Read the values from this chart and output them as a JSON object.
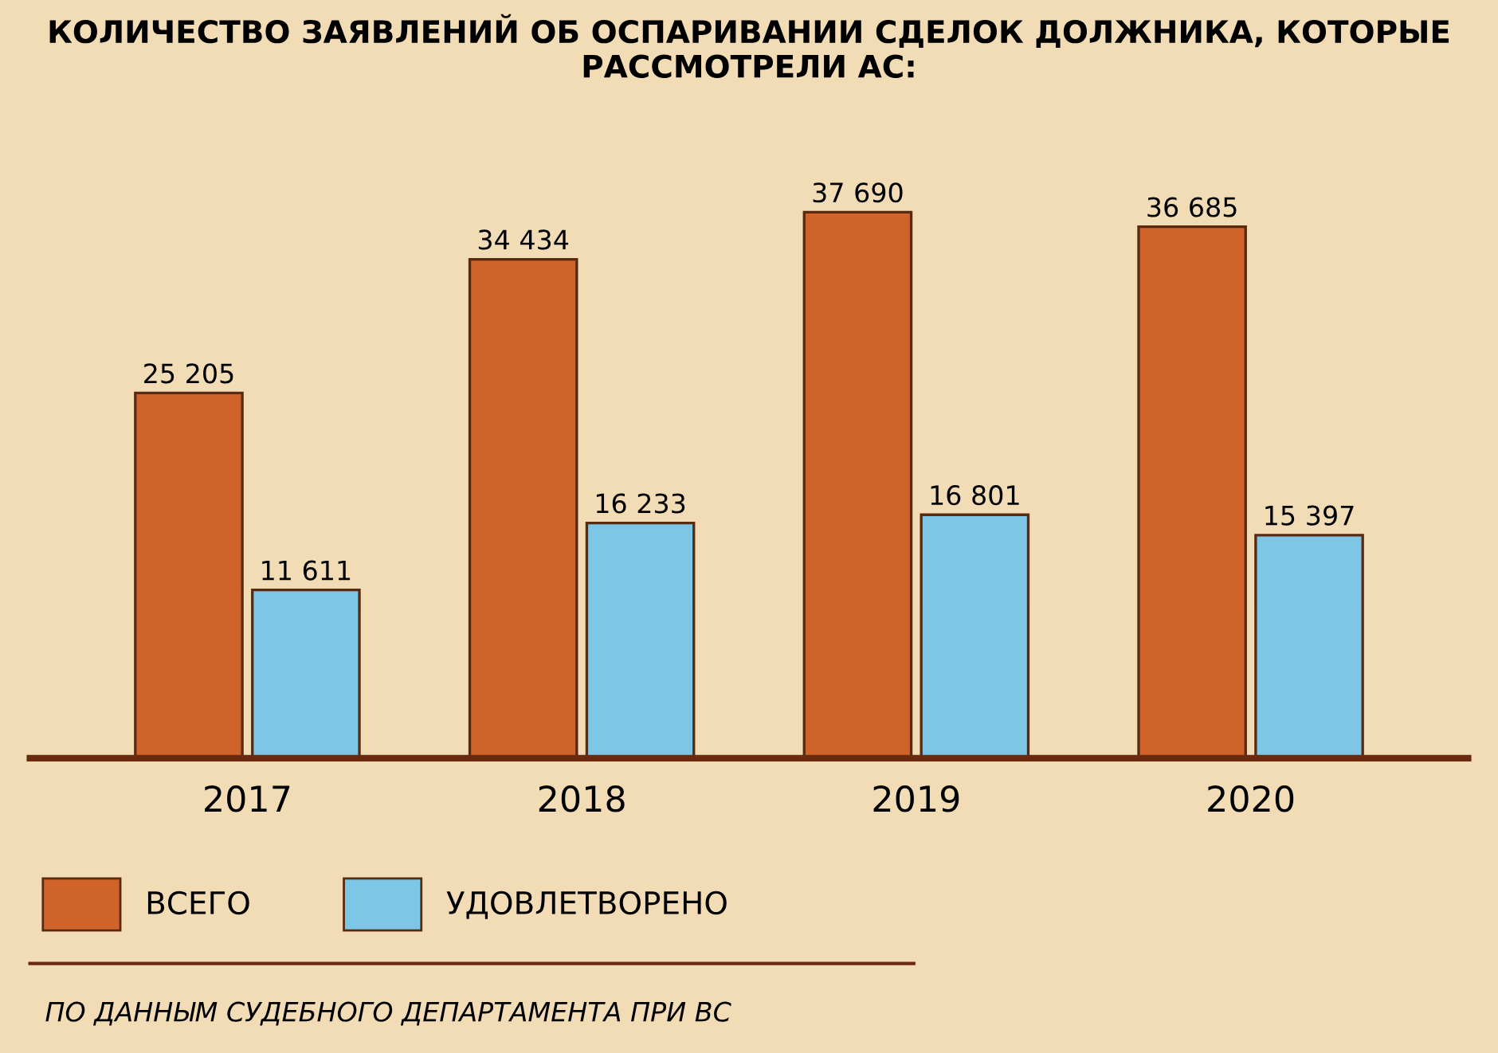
{
  "chart_data": {
    "type": "bar",
    "title": "КОЛИЧЕСТВО ЗАЯВЛЕНИЙ ОБ ОСПАРИВАНИИ СДЕЛОК ДОЛЖНИКА, КОТОРЫЕ РАССМОТРЕЛИ АС:",
    "categories": [
      "2017",
      "2018",
      "2019",
      "2020"
    ],
    "series": [
      {
        "name": "ВСЕГО",
        "color": "#d0632a",
        "values": [
          25205,
          34434,
          37690,
          36685
        ],
        "value_labels": [
          "25 205",
          "34 434",
          "37 690",
          "36 685"
        ]
      },
      {
        "name": "УДОВЛЕТВОРЕНО",
        "color": "#7ec6e6",
        "values": [
          11611,
          16233,
          16801,
          15397
        ],
        "value_labels": [
          "11 611",
          "16 233",
          "16 801",
          "15 397"
        ]
      }
    ],
    "legend": "bottom left",
    "grid": false,
    "annotations": [
      "ПО ДАННЫМ СУДЕБНОГО ДЕПАРТАМЕНТА ПРИ ВС"
    ]
  }
}
